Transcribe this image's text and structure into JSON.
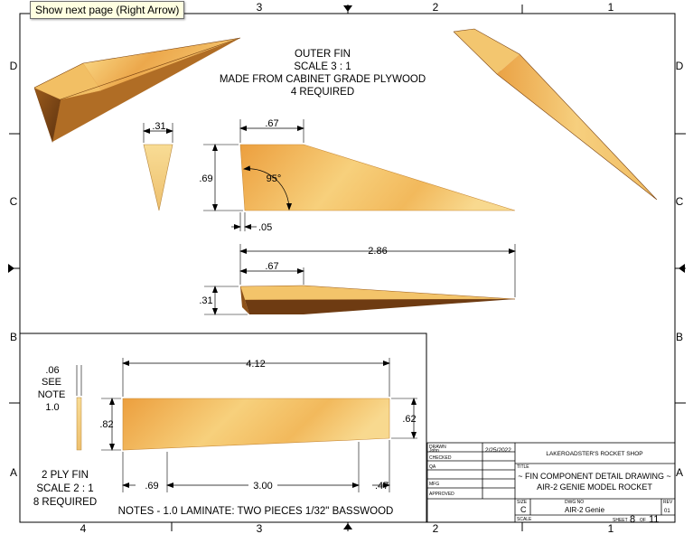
{
  "tooltip": {
    "text": "Show next page (Right Arrow)"
  },
  "zones": {
    "columns": [
      "4",
      "3",
      "2",
      "1"
    ],
    "rows": [
      "D",
      "C",
      "B",
      "A"
    ]
  },
  "outer_fin": {
    "title_lines": [
      "OUTER FIN",
      "SCALE 3 : 1",
      "MADE FROM CABINET GRADE PLYWOOD",
      "4 REQUIRED"
    ],
    "dims": {
      "thickness": ".31",
      "root_chord": ".67",
      "span": ".69",
      "angle": "95°",
      "tip_offset": ".05",
      "length": "2.86",
      "chord_top": ".67",
      "edge_thickness": ".31"
    }
  },
  "inner_fin": {
    "dims": {
      "thickness": ".06",
      "see": "SEE",
      "note": "NOTE",
      "note_ref": "1.0",
      "length": "4.12",
      "root": ".82",
      "tip": ".62",
      "left": ".69",
      "middle": "3.00",
      "right": ".47"
    },
    "label_lines": [
      "2 PLY FIN",
      "SCALE 2 : 1",
      "8 REQUIRED"
    ],
    "notes": "NOTES - 1.0 LAMINATE: TWO PIECES 1/32\" BASSWOOD"
  },
  "title_block": {
    "drawn_label": "DRAWN",
    "drawn_by": "John",
    "drawn_date": "2/25/2022",
    "checked_label": "CHECKED",
    "qa_label": "QA",
    "mfg_label": "MFG",
    "approved_label": "APPROVED",
    "company": "LAKEROADSTER'S ROCKET SHOP",
    "title_label": "TITLE",
    "title_line1": "~ FIN COMPONENT DETAIL DRAWING ~",
    "title_line2": "AIR-2 GENIE MODEL ROCKET",
    "size_label": "SIZE",
    "size": "C",
    "dwg_label": "DWG NO",
    "dwg_no": "AIR-2 Genie",
    "rev_label": "REV",
    "rev": "01",
    "scale_label": "SCALE",
    "sheet_label": "SHEET",
    "sheet_no": "8",
    "of_label": "OF",
    "sheet_total": "11"
  },
  "colors": {
    "wood_light": "#f6d27a",
    "wood_mid": "#eda94c",
    "wood_dark": "#a9661f",
    "wood_shadow": "#6b3a10",
    "tooltip_bg": "#ffffe1"
  }
}
